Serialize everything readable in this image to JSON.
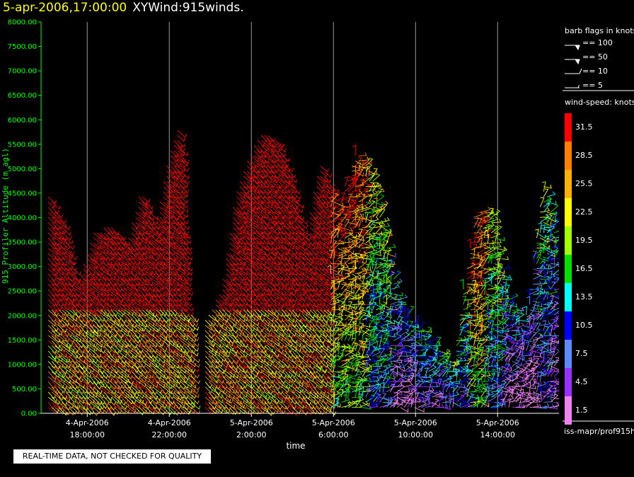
{
  "header": {
    "datetime": "5-apr-2006,17:00:00",
    "product": "XYWind:915winds."
  },
  "chart_data": {
    "type": "wind-barb time-height",
    "ylabel": "915 Profiler Altitude (m agl)",
    "xlabel": "time",
    "ylim": [
      0,
      8000
    ],
    "yticks": [
      "0.00",
      "500.00",
      "1000.00",
      "1500.00",
      "2000.00",
      "2500.00",
      "3000.00",
      "3500.00",
      "4000.00",
      "4500.00",
      "5000.00",
      "5500.00",
      "6000.00",
      "6500.00",
      "7000.00",
      "7500.00",
      "8000.00"
    ],
    "xticks": [
      {
        "date": "4-Apr-2006",
        "time": "18:00:00",
        "hour": 18
      },
      {
        "date": "4-Apr-2006",
        "time": "22:00:00",
        "hour": 22
      },
      {
        "date": "5-Apr-2006",
        "time": "2:00:00",
        "hour": 26
      },
      {
        "date": "5-Apr-2006",
        "time": "6:00:00",
        "hour": 30
      },
      {
        "date": "5-Apr-2006",
        "time": "10:00:00",
        "hour": 34
      },
      {
        "date": "5-Apr-2006",
        "time": "14:00:00",
        "hour": 38
      }
    ],
    "grid": "vertical lines at labeled times",
    "profile_tops": [
      {
        "hour": 16.1,
        "top": 4500,
        "speed": 31.5
      },
      {
        "hour": 16.8,
        "top": 3900,
        "speed": 31.5
      },
      {
        "hour": 17.5,
        "top": 2700,
        "speed": 31.5
      },
      {
        "hour": 18.3,
        "top": 3700,
        "speed": 31.5
      },
      {
        "hour": 19.1,
        "top": 3900,
        "speed": 31.5
      },
      {
        "hour": 19.9,
        "top": 3500,
        "speed": 31.5
      },
      {
        "hour": 20.6,
        "top": 4600,
        "speed": 31.5
      },
      {
        "hour": 21.3,
        "top": 3900,
        "speed": 31.5
      },
      {
        "hour": 21.9,
        "top": 5200,
        "speed": 31.5
      },
      {
        "hour": 22.5,
        "top": 6000,
        "speed": 31.5
      },
      {
        "hour": 22.9,
        "top": 2100,
        "speed": 31.5
      },
      {
        "hour": 23.8,
        "top": 2000,
        "speed": 31.5
      },
      {
        "hour": 24.5,
        "top": 2500,
        "speed": 31.5
      },
      {
        "hour": 25.2,
        "top": 4500,
        "speed": 31.5
      },
      {
        "hour": 25.9,
        "top": 5300,
        "speed": 31.5
      },
      {
        "hour": 26.5,
        "top": 5800,
        "speed": 31.5
      },
      {
        "hour": 27.2,
        "top": 5600,
        "speed": 31.5
      },
      {
        "hour": 27.9,
        "top": 4900,
        "speed": 31.5
      },
      {
        "hour": 28.6,
        "top": 3600,
        "speed": 31.5
      },
      {
        "hour": 29.3,
        "top": 5200,
        "speed": 31.5
      },
      {
        "hour": 30.2,
        "top": 4300,
        "speed": 31.5
      },
      {
        "hour": 31.1,
        "top": 5400,
        "speed": 31.5
      },
      {
        "hour": 32.0,
        "top": 4800,
        "speed": 22.5
      },
      {
        "hour": 33.2,
        "top": 2200,
        "speed": 13.5
      },
      {
        "hour": 34.5,
        "top": 1600,
        "speed": 16.5
      },
      {
        "hour": 35.8,
        "top": 1000,
        "speed": 19.5
      },
      {
        "hour": 36.9,
        "top": 4200,
        "speed": 31.5
      },
      {
        "hour": 37.7,
        "top": 4100,
        "speed": 22.5
      },
      {
        "hour": 38.4,
        "top": 2500,
        "speed": 13.5
      },
      {
        "hour": 39.3,
        "top": 1800,
        "speed": 10.5
      },
      {
        "hour": 40.2,
        "top": 4700,
        "speed": 19.5
      },
      {
        "hour": 40.9,
        "top": 3800,
        "speed": 13.5
      }
    ]
  },
  "legend": {
    "barb_title": "barb flags in knots",
    "barbs": [
      {
        "value": "== 100",
        "kind": "pennant"
      },
      {
        "value": "== 50",
        "kind": "pennant-half"
      },
      {
        "value": "== 10",
        "kind": "full"
      },
      {
        "value": "== 5",
        "kind": "half"
      }
    ],
    "speed_title": "wind-speed: knots",
    "speeds": [
      {
        "label": "31.5",
        "color": "#ff0000"
      },
      {
        "label": "28.5",
        "color": "#ff7f00"
      },
      {
        "label": "25.5",
        "color": "#ffb000"
      },
      {
        "label": "22.5",
        "color": "#ffff00"
      },
      {
        "label": "19.5",
        "color": "#a0ff00"
      },
      {
        "label": "16.5",
        "color": "#00e000"
      },
      {
        "label": "13.5",
        "color": "#00ffff"
      },
      {
        "label": "10.5",
        "color": "#0000ff"
      },
      {
        "label": "7.5",
        "color": "#5a8cff"
      },
      {
        "label": "4.5",
        "color": "#9a30ff"
      },
      {
        "label": "1.5",
        "color": "#ee82ee"
      }
    ]
  },
  "footer": {
    "qc_note": "REAL-TIME DATA, NOT CHECKED FOR QUALITY",
    "source": "iss-mapr/prof915h"
  }
}
